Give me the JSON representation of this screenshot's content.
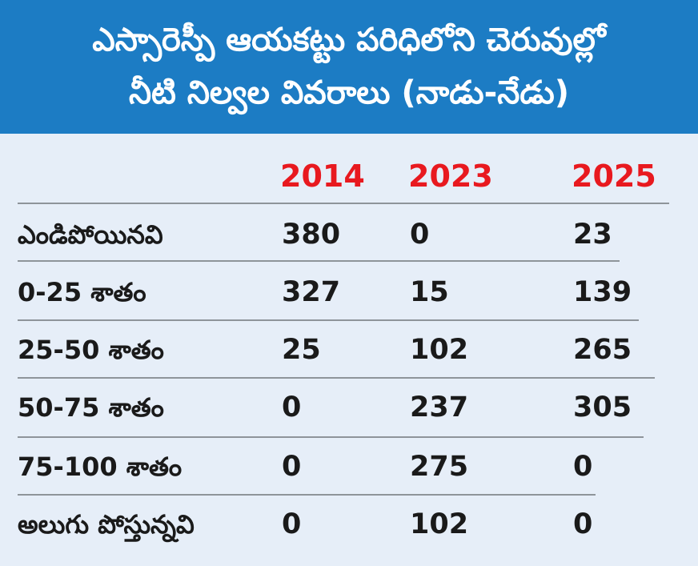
{
  "title": {
    "line1": "ఎస్సారెస్పీ ఆయకట్టు పరిధిలోని చెరువుల్లో",
    "line2": "నీటి నిల్వల వివరాలు (నాడు-నేడు)"
  },
  "table": {
    "years": [
      "2014",
      "2023",
      "2025"
    ],
    "rows": [
      {
        "label": "ఎండిపోయినవి",
        "values": [
          "380",
          "0",
          "23"
        ]
      },
      {
        "label": "0-25 శాతం",
        "values": [
          "327",
          "15",
          "139"
        ]
      },
      {
        "label": "25-50 శాతం",
        "values": [
          "25",
          "102",
          "265"
        ]
      },
      {
        "label": "50-75 శాతం",
        "values": [
          "0",
          "237",
          "305"
        ]
      },
      {
        "label": "75-100 శాతం",
        "values": [
          "0",
          "275",
          "0"
        ]
      },
      {
        "label": "అలుగు పోస్తున్నవి",
        "values": [
          "0",
          "102",
          "0"
        ]
      }
    ]
  },
  "colors": {
    "header_bg": "#1c7cc4",
    "body_bg": "#e6eef8",
    "year_text": "#e8191f",
    "rule": "#8e949a"
  }
}
